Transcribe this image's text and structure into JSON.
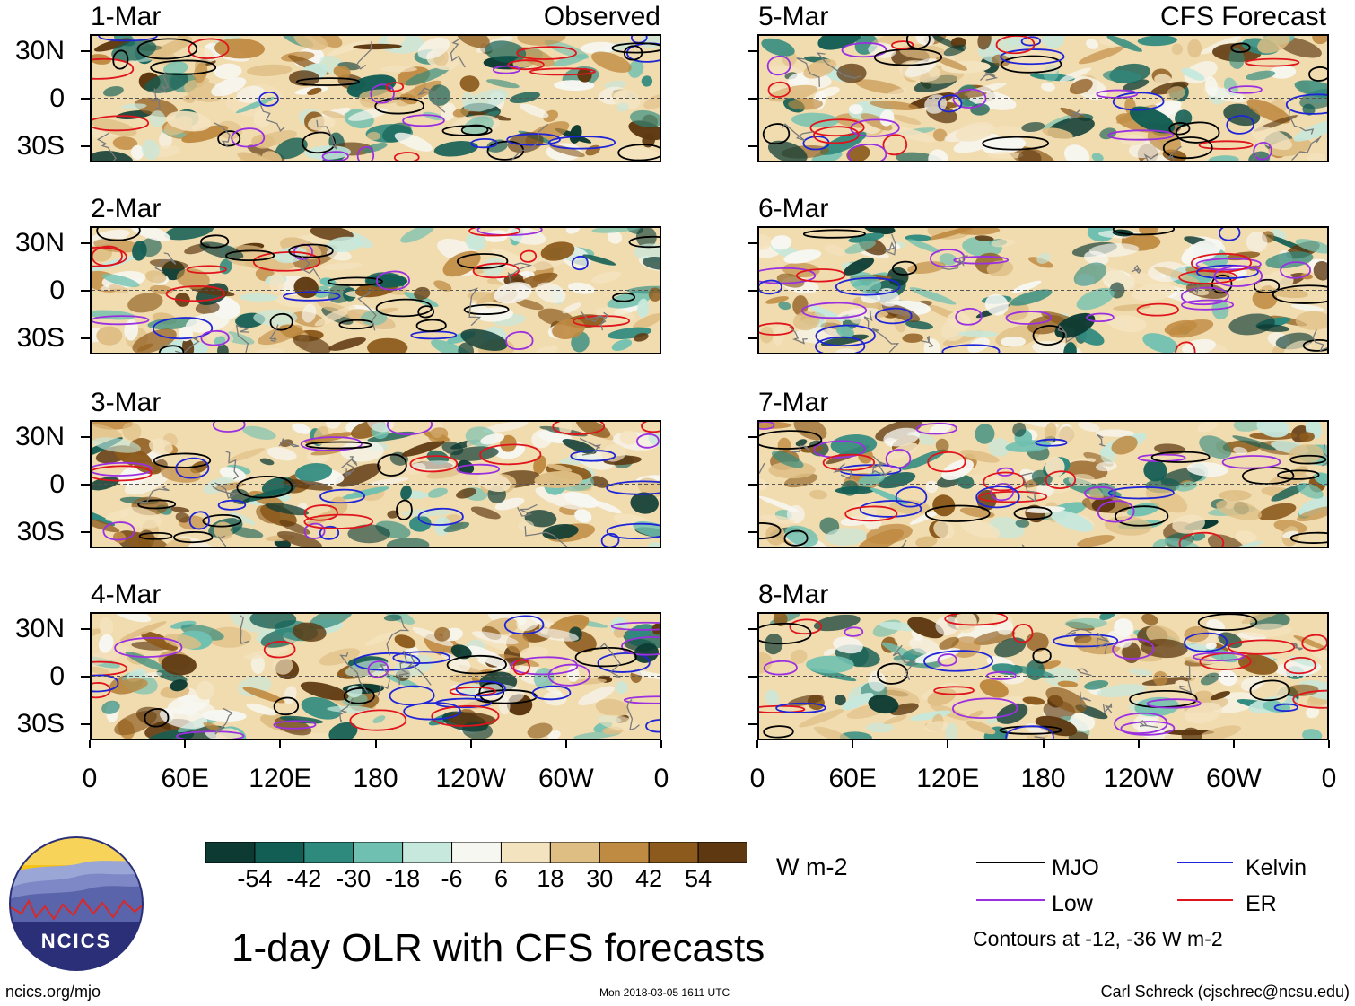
{
  "left_column_label": "Observed",
  "right_column_label": "CFS Forecast",
  "panels_left": [
    {
      "date": "1-Mar"
    },
    {
      "date": "2-Mar"
    },
    {
      "date": "3-Mar"
    },
    {
      "date": "4-Mar"
    }
  ],
  "panels_right": [
    {
      "date": "5-Mar"
    },
    {
      "date": "6-Mar"
    },
    {
      "date": "7-Mar"
    },
    {
      "date": "8-Mar"
    }
  ],
  "lat_labels": [
    "30N",
    "0",
    "30S"
  ],
  "lon_labels": [
    "0",
    "60E",
    "120E",
    "180",
    "120W",
    "60W",
    "0"
  ],
  "colorbar": {
    "ticks": [
      "-54",
      "-42",
      "-30",
      "-18",
      "-6",
      "6",
      "18",
      "30",
      "42",
      "54"
    ],
    "colors": [
      "#0d3b33",
      "#135e54",
      "#2f8a7e",
      "#6fc0b0",
      "#c6e8dd",
      "#f7f7f2",
      "#f4e3bf",
      "#dfbe84",
      "#bf8a41",
      "#8c5a1c",
      "#5e3810"
    ],
    "units": "W m-2"
  },
  "legend": {
    "items": [
      {
        "label": "MJO",
        "color": "#000000"
      },
      {
        "label": "Kelvin",
        "color": "#1f25d6"
      },
      {
        "label": "Low",
        "color": "#9b30e0"
      },
      {
        "label": "ER",
        "color": "#e0141c"
      }
    ],
    "note": "Contours at -12, -36 W m-2"
  },
  "title": "1-day OLR with CFS forecasts",
  "footer": {
    "website": "ncics.org/mjo",
    "timestamp": "Mon 2018-03-05 1611 UTC",
    "credit": "Carl Schreck (cjschrec@ncsu.edu)"
  },
  "logo": {
    "text": "NCICS"
  },
  "chart_data": {
    "type": "heatmap",
    "title": "1-day OLR with CFS forecasts",
    "variable": "OLR anomaly",
    "units": "W m-2",
    "color_levels": [
      -54,
      -42,
      -30,
      -18,
      -6,
      6,
      18,
      30,
      42,
      54
    ],
    "x_ticks": [
      "0",
      "60E",
      "120E",
      "180",
      "120W",
      "60W",
      "0"
    ],
    "y_ticks": [
      "30N",
      "0",
      "30S"
    ],
    "xlim": [
      0,
      360
    ],
    "ylim": [
      -40,
      40
    ],
    "panels": [
      {
        "date": "1-Mar",
        "source": "Observed"
      },
      {
        "date": "2-Mar",
        "source": "Observed"
      },
      {
        "date": "3-Mar",
        "source": "Observed"
      },
      {
        "date": "4-Mar",
        "source": "Observed"
      },
      {
        "date": "5-Mar",
        "source": "CFS Forecast"
      },
      {
        "date": "6-Mar",
        "source": "CFS Forecast"
      },
      {
        "date": "7-Mar",
        "source": "CFS Forecast"
      },
      {
        "date": "8-Mar",
        "source": "CFS Forecast"
      }
    ],
    "contour_filters": [
      "MJO",
      "Kelvin",
      "Low",
      "ER"
    ],
    "contour_levels": [
      -12,
      -36
    ]
  }
}
